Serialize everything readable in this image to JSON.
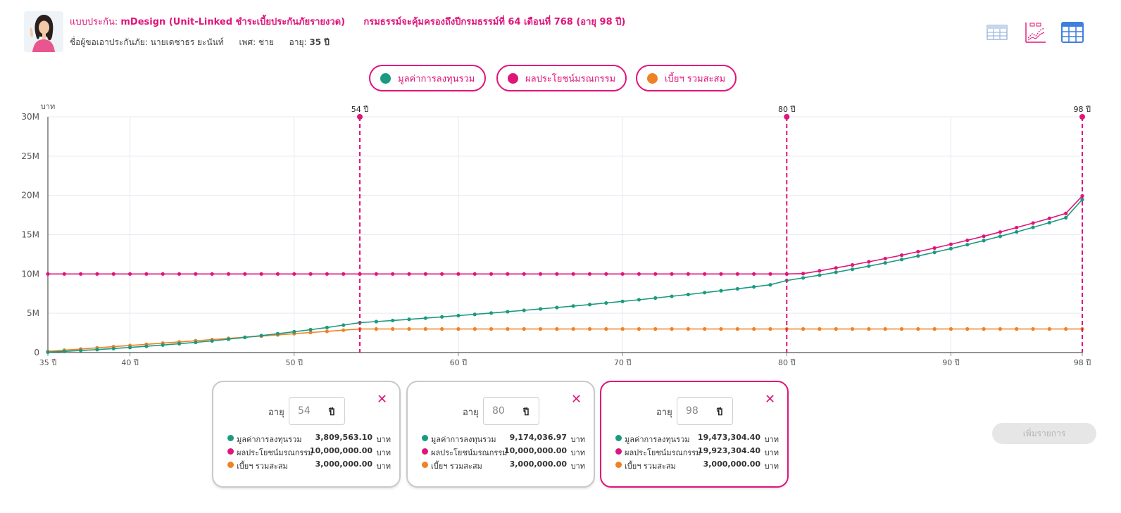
{
  "header": {
    "plan_label": "แบบประกัน:",
    "plan_value": "mDesign (Unit-Linked ชำระเบี้ยประกันภัยรายงวด)",
    "coverage_text": "กรมธรรม์จะคุ้มครองถึงปีกรมธรรม์ที่ 64 เดือนที่ 768 (อายุ 98 ปี)",
    "applicant_label": "ชื่อผู้ขอเอาประกันภัย:",
    "applicant_name": "นายเดชาธร ยะนันท์",
    "gender_label": "เพศ:",
    "gender_value": "ชาย",
    "age_label": "อายุ:",
    "age_value": "35 ปี"
  },
  "view_icons": [
    "table-view-icon",
    "chart-view-icon",
    "grid-view-icon"
  ],
  "colors": {
    "brand": "#e0157a",
    "investment": "#1a9a80",
    "death_benefit": "#e0157a",
    "premium": "#ee8224",
    "grid": "#e5e9f0"
  },
  "legend": [
    {
      "label": "มูลค่าการลงทุนรวม",
      "color": "#1a9a80"
    },
    {
      "label": "ผลประโยชน์มรณกรรม",
      "color": "#e0157a"
    },
    {
      "label": "เบี้ยฯ รวมสะสม",
      "color": "#ee8224"
    }
  ],
  "chart_data": {
    "type": "line",
    "ylabel": "บาท",
    "xlim": [
      35,
      98
    ],
    "ylim": [
      0,
      30000000
    ],
    "yticks": [
      0,
      5000000,
      10000000,
      15000000,
      20000000,
      25000000,
      30000000
    ],
    "ytick_labels": [
      "0",
      "5M",
      "10M",
      "15M",
      "20M",
      "25M",
      "30M"
    ],
    "xticks": [
      35,
      40,
      50,
      60,
      70,
      80,
      90,
      98
    ],
    "xtick_labels": [
      "35 ปี",
      "40 ปี",
      "50 ปี",
      "60 ปี",
      "70 ปี",
      "80 ปี",
      "90 ปี",
      "98 ปี"
    ],
    "grid": true,
    "markers": [
      {
        "x": 54,
        "label": "54 ปี"
      },
      {
        "x": 80,
        "label": "80 ปี"
      },
      {
        "x": 98,
        "label": "98 ปี"
      }
    ],
    "x": [
      35,
      36,
      37,
      38,
      39,
      40,
      41,
      42,
      43,
      44,
      45,
      46,
      47,
      48,
      49,
      50,
      51,
      52,
      53,
      54,
      55,
      56,
      57,
      58,
      59,
      60,
      61,
      62,
      63,
      64,
      65,
      66,
      67,
      68,
      69,
      70,
      71,
      72,
      73,
      74,
      75,
      76,
      77,
      78,
      79,
      80,
      81,
      82,
      83,
      84,
      85,
      86,
      87,
      88,
      89,
      90,
      91,
      92,
      93,
      94,
      95,
      96,
      97,
      98
    ],
    "series": [
      {
        "name": "มูลค่าการลงทุนรวม",
        "color": "#1a9a80",
        "values": [
          50000,
          150000,
          260000,
          380000,
          510000,
          650000,
          800000,
          960000,
          1130000,
          1300000,
          1480000,
          1700000,
          1930000,
          2160000,
          2400000,
          2650000,
          2910000,
          3190000,
          3490000,
          3809563.1,
          3940000,
          4080000,
          4230000,
          4380000,
          4540000,
          4700000,
          4860000,
          5030000,
          5200000,
          5370000,
          5550000,
          5730000,
          5920000,
          6110000,
          6310000,
          6510000,
          6720000,
          6940000,
          7160000,
          7390000,
          7630000,
          7870000,
          8110000,
          8360000,
          8620000,
          9174036.97,
          9500000,
          9850000,
          10220000,
          10600000,
          11000000,
          11410000,
          11840000,
          12290000,
          12750000,
          13230000,
          13730000,
          14250000,
          14790000,
          15350000,
          15930000,
          16530000,
          17160000,
          19473304.4
        ]
      },
      {
        "name": "ผลประโยชน์มรณกรรม",
        "color": "#e0157a",
        "values": [
          10000000,
          10000000,
          10000000,
          10000000,
          10000000,
          10000000,
          10000000,
          10000000,
          10000000,
          10000000,
          10000000,
          10000000,
          10000000,
          10000000,
          10000000,
          10000000,
          10000000,
          10000000,
          10000000,
          10000000,
          10000000,
          10000000,
          10000000,
          10000000,
          10000000,
          10000000,
          10000000,
          10000000,
          10000000,
          10000000,
          10000000,
          10000000,
          10000000,
          10000000,
          10000000,
          10000000,
          10000000,
          10000000,
          10000000,
          10000000,
          10000000,
          10000000,
          10000000,
          10000000,
          10000000,
          10000000,
          10050000,
          10400000,
          10770000,
          11150000,
          11550000,
          11960000,
          12390000,
          12840000,
          13300000,
          13780000,
          14280000,
          14800000,
          15340000,
          15900000,
          16480000,
          17080000,
          17710000,
          19923304.4
        ]
      },
      {
        "name": "เบี้ยฯ รวมสะสม",
        "color": "#ee8224",
        "values": [
          150000,
          300000,
          450000,
          600000,
          750000,
          900000,
          1050000,
          1200000,
          1350000,
          1500000,
          1650000,
          1800000,
          1950000,
          2100000,
          2250000,
          2400000,
          2550000,
          2700000,
          2850000,
          3000000,
          3000000,
          3000000,
          3000000,
          3000000,
          3000000,
          3000000,
          3000000,
          3000000,
          3000000,
          3000000,
          3000000,
          3000000,
          3000000,
          3000000,
          3000000,
          3000000,
          3000000,
          3000000,
          3000000,
          3000000,
          3000000,
          3000000,
          3000000,
          3000000,
          3000000,
          3000000,
          3000000,
          3000000,
          3000000,
          3000000,
          3000000,
          3000000,
          3000000,
          3000000,
          3000000,
          3000000,
          3000000,
          3000000,
          3000000,
          3000000,
          3000000,
          3000000,
          3000000,
          3000000
        ]
      }
    ]
  },
  "cards": [
    {
      "age_label": "อายุ",
      "age": "54",
      "unit": "ปี",
      "active": false,
      "rows": [
        {
          "name": "มูลค่าการลงทุนรวม",
          "value": "3,809,563.10",
          "unit": "บาท",
          "color": "#1a9a80"
        },
        {
          "name": "ผลประโยชน์มรณกรรม",
          "value": "10,000,000.00",
          "unit": "บาท",
          "color": "#e0157a"
        },
        {
          "name": "เบี้ยฯ รวมสะสม",
          "value": "3,000,000.00",
          "unit": "บาท",
          "color": "#ee8224"
        }
      ]
    },
    {
      "age_label": "อายุ",
      "age": "80",
      "unit": "ปี",
      "active": false,
      "rows": [
        {
          "name": "มูลค่าการลงทุนรวม",
          "value": "9,174,036.97",
          "unit": "บาท",
          "color": "#1a9a80"
        },
        {
          "name": "ผลประโยชน์มรณกรรม",
          "value": "10,000,000.00",
          "unit": "บาท",
          "color": "#e0157a"
        },
        {
          "name": "เบี้ยฯ รวมสะสม",
          "value": "3,000,000.00",
          "unit": "บาท",
          "color": "#ee8224"
        }
      ]
    },
    {
      "age_label": "อายุ",
      "age": "98",
      "unit": "ปี",
      "active": true,
      "rows": [
        {
          "name": "มูลค่าการลงทุนรวม",
          "value": "19,473,304.40",
          "unit": "บาท",
          "color": "#1a9a80"
        },
        {
          "name": "ผลประโยชน์มรณกรรม",
          "value": "19,923,304.40",
          "unit": "บาท",
          "color": "#e0157a"
        },
        {
          "name": "เบี้ยฯ รวมสะสม",
          "value": "3,000,000.00",
          "unit": "บาท",
          "color": "#ee8224"
        }
      ]
    }
  ],
  "add_button": "เพิ่มรายการ"
}
